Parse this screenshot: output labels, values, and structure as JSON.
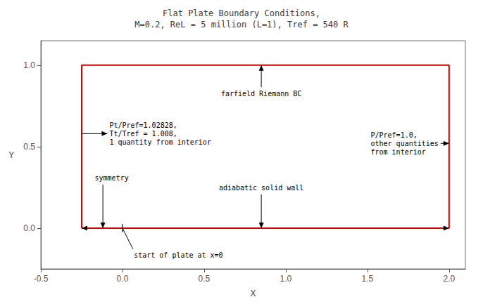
{
  "chart_data": {
    "type": "line",
    "title": "Flat Plate Boundary Conditions,\nM=0.2, ReL = 5 million (L=1), Tref = 540 R",
    "xlabel": "X",
    "ylabel": "Y",
    "xlim": [
      -0.5,
      2.1
    ],
    "ylim": [
      -0.25,
      1.15
    ],
    "xticks": [
      -0.5,
      {
        "value": 0.0,
        "label": "0.0"
      },
      0.5,
      {
        "value": 1.0,
        "label": "1.0"
      },
      1.5,
      {
        "value": 2.0,
        "label": "2.0"
      }
    ],
    "yticks": [
      {
        "value": 0.0,
        "label": "0.0"
      },
      0.5,
      {
        "value": 1.0,
        "label": "1.0"
      }
    ],
    "grid": false,
    "series": [
      {
        "type": "line",
        "color": "#000000",
        "marker": "arrow",
        "x": [
          -0.25,
          2.0
        ],
        "values": [
          0.0,
          0.0
        ]
      },
      {
        "type": "line",
        "color": "#cc0000",
        "x": [
          -0.25,
          2.0,
          2.0,
          -0.25,
          -0.25
        ],
        "values": [
          0.0,
          0.0,
          1.0,
          1.0,
          0.0
        ]
      },
      {
        "type": "line",
        "color": "#000000",
        "x": [
          0,
          0
        ],
        "values": [
          -0.025,
          0.025
        ]
      }
    ],
    "annotations": [
      {
        "text": "farfield Riemann BC",
        "x": 0.85,
        "y": 0.8,
        "arrow_x": 0.85,
        "arrow_y": 1.0,
        "arrow": "->",
        "color": "#000000"
      },
      {
        "text": "Pt/Pref=1.02828,\nTt/Tref = 1.008,\n1 quantity from interior",
        "x": -0.08,
        "y": 0.58,
        "arrow_x": -0.25,
        "arrow_y": 0.58,
        "arrow": "<-",
        "color": "#000000"
      },
      {
        "text": "P/Pref=1.0,\nother quantities\nfrom interior",
        "x": 1.52,
        "y": 0.52,
        "arrow_x": 2.0,
        "arrow_y": 0.52,
        "arrow": "->",
        "color": "#000000"
      },
      {
        "text": "symmetry",
        "x": -0.17,
        "y": 0.28,
        "arrow_x": -0.12,
        "arrow_y": 0.0,
        "arrow": "->",
        "color": "#000000"
      },
      {
        "text": "adiabatic solid wall",
        "x": 0.85,
        "y": 0.22,
        "arrow_x": 0.85,
        "arrow_y": 0.0,
        "arrow": "->",
        "color": "#000000"
      },
      {
        "text": "start of plate at x=0",
        "x": 0.07,
        "y": -0.14,
        "arrow_x": 0.0,
        "arrow_y": 0.0,
        "arrow": "-",
        "color": "#000000"
      }
    ]
  }
}
